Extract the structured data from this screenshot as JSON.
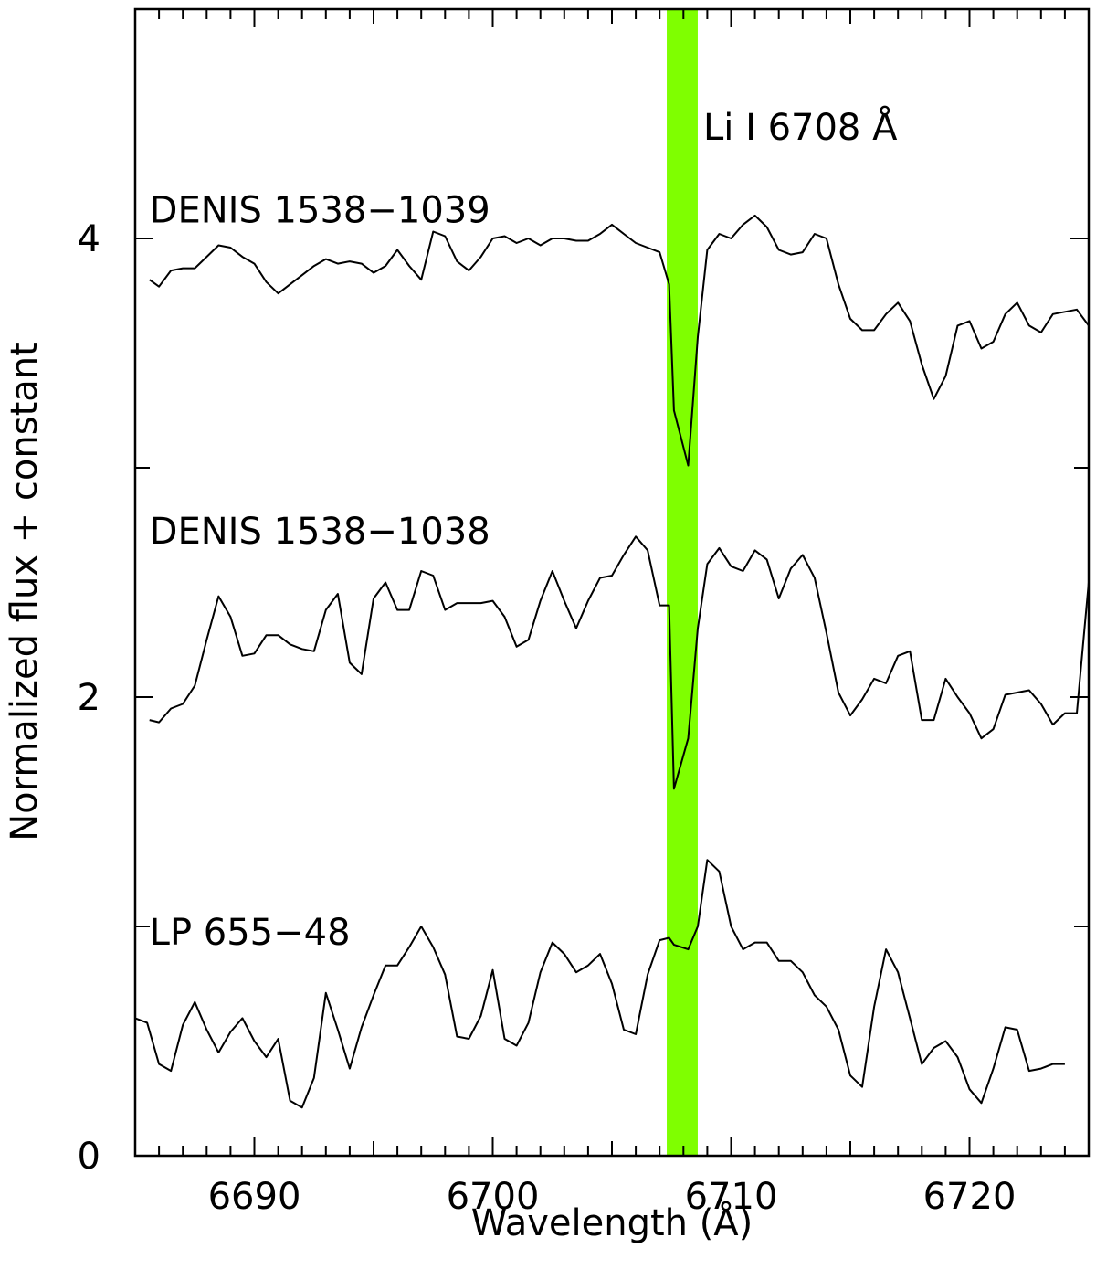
{
  "chart_data": {
    "type": "line",
    "title": "",
    "xlabel": "Wavelength (Å)",
    "ylabel": "Normalized flux + constant",
    "xlim": [
      6685,
      6725
    ],
    "ylim": [
      0,
      5
    ],
    "x_ticks": [
      6690,
      6700,
      6710,
      6720
    ],
    "y_ticks": [
      0,
      2,
      4
    ],
    "x_minor_step": 1,
    "y_minor_step": 1,
    "line_color": "#000000",
    "highlight": {
      "label": "Li I 6708 Å",
      "x_range": [
        6707.3,
        6708.6
      ],
      "color": "#7fff00"
    },
    "series": [
      {
        "name": "DENIS 1538−1039",
        "label_at": [
          6685.6,
          4.07
        ],
        "x": [
          6685.6,
          6686.0,
          6686.5,
          6687.0,
          6687.5,
          6688.0,
          6688.5,
          6689.0,
          6689.5,
          6690.0,
          6690.5,
          6691.0,
          6691.5,
          6692.0,
          6692.5,
          6693.0,
          6693.5,
          6694.0,
          6694.5,
          6695.0,
          6695.5,
          6696.0,
          6696.5,
          6697.0,
          6697.5,
          6698.0,
          6698.5,
          6699.0,
          6699.5,
          6700.0,
          6700.5,
          6701.0,
          6701.5,
          6702.0,
          6702.5,
          6703.0,
          6703.5,
          6704.0,
          6704.5,
          6705.0,
          6705.5,
          6706.0,
          6706.5,
          6707.0,
          6707.4,
          6707.6,
          6708.2,
          6708.6,
          6709.0,
          6709.5,
          6710.0,
          6710.5,
          6711.0,
          6711.5,
          6712.0,
          6712.5,
          6713.0,
          6713.5,
          6714.0,
          6714.5,
          6715.0,
          6715.5,
          6716.0,
          6716.5,
          6717.0,
          6717.5,
          6718.0,
          6718.5,
          6719.0,
          6719.5,
          6720.0,
          6720.5,
          6721.0,
          6721.5,
          6722.0,
          6722.5,
          6723.0,
          6723.5,
          6724.0,
          6724.5,
          6725.0
        ],
        "y": [
          3.82,
          3.79,
          3.86,
          3.87,
          3.87,
          3.92,
          3.97,
          3.96,
          3.92,
          3.89,
          3.81,
          3.76,
          3.8,
          3.84,
          3.88,
          3.91,
          3.89,
          3.9,
          3.89,
          3.85,
          3.88,
          3.95,
          3.88,
          3.82,
          4.03,
          4.01,
          3.9,
          3.86,
          3.92,
          4.0,
          4.01,
          3.98,
          4.0,
          3.97,
          4.0,
          4.0,
          3.99,
          3.99,
          4.02,
          4.06,
          4.02,
          3.98,
          3.96,
          3.94,
          3.8,
          3.25,
          3.01,
          3.57,
          3.95,
          4.02,
          4.0,
          4.06,
          4.1,
          4.05,
          3.95,
          3.93,
          3.94,
          4.02,
          4.0,
          3.8,
          3.65,
          3.6,
          3.6,
          3.67,
          3.72,
          3.64,
          3.45,
          3.3,
          3.4,
          3.62,
          3.64,
          3.52,
          3.55,
          3.67,
          3.72,
          3.62,
          3.59,
          3.67,
          3.68,
          3.69,
          3.62
        ]
      },
      {
        "name": "DENIS 1538−1038",
        "label_at": [
          6685.6,
          2.67
        ],
        "x": [
          6685.6,
          6686.0,
          6686.5,
          6687.0,
          6687.5,
          6688.0,
          6688.5,
          6689.0,
          6689.5,
          6690.0,
          6690.5,
          6691.0,
          6691.5,
          6692.0,
          6692.5,
          6693.0,
          6693.5,
          6694.0,
          6694.5,
          6695.0,
          6695.5,
          6696.0,
          6696.5,
          6697.0,
          6697.5,
          6698.0,
          6698.5,
          6699.0,
          6699.5,
          6700.0,
          6700.5,
          6701.0,
          6701.5,
          6702.0,
          6702.5,
          6703.0,
          6703.5,
          6704.0,
          6704.5,
          6705.0,
          6705.5,
          6706.0,
          6706.5,
          6707.0,
          6707.4,
          6707.6,
          6708.2,
          6708.6,
          6709.0,
          6709.5,
          6710.0,
          6710.5,
          6711.0,
          6711.5,
          6712.0,
          6712.5,
          6713.0,
          6713.5,
          6714.0,
          6714.5,
          6715.0,
          6715.5,
          6716.0,
          6716.5,
          6717.0,
          6717.5,
          6718.0,
          6718.5,
          6719.0,
          6719.5,
          6720.0,
          6720.5,
          6721.0,
          6721.5,
          6722.0,
          6722.5,
          6723.0,
          6723.5,
          6724.0,
          6724.5,
          6725.0
        ],
        "y": [
          1.9,
          1.89,
          1.95,
          1.97,
          2.05,
          2.25,
          2.44,
          2.35,
          2.18,
          2.19,
          2.27,
          2.27,
          2.23,
          2.21,
          2.2,
          2.38,
          2.45,
          2.15,
          2.1,
          2.43,
          2.5,
          2.38,
          2.38,
          2.55,
          2.53,
          2.38,
          2.41,
          2.41,
          2.41,
          2.42,
          2.35,
          2.22,
          2.25,
          2.42,
          2.55,
          2.42,
          2.3,
          2.42,
          2.52,
          2.53,
          2.62,
          2.7,
          2.64,
          2.4,
          2.4,
          1.6,
          1.82,
          2.3,
          2.58,
          2.65,
          2.57,
          2.55,
          2.64,
          2.6,
          2.43,
          2.56,
          2.62,
          2.52,
          2.28,
          2.02,
          1.92,
          1.99,
          2.08,
          2.06,
          2.18,
          2.2,
          1.9,
          1.9,
          2.08,
          2.0,
          1.93,
          1.82,
          1.86,
          2.01,
          2.02,
          2.03,
          1.97,
          1.88,
          1.93,
          1.93,
          2.5
        ]
      },
      {
        "name": "LP 655−48",
        "label_at": [
          6685.6,
          0.92
        ],
        "x": [
          6685.0,
          6685.5,
          6686.0,
          6686.5,
          6687.0,
          6687.5,
          6688.0,
          6688.5,
          6689.0,
          6689.5,
          6690.0,
          6690.5,
          6691.0,
          6691.5,
          6692.0,
          6692.5,
          6693.0,
          6693.5,
          6694.0,
          6694.5,
          6695.0,
          6695.5,
          6696.0,
          6696.5,
          6697.0,
          6697.5,
          6698.0,
          6698.5,
          6699.0,
          6699.5,
          6700.0,
          6700.5,
          6701.0,
          6701.5,
          6702.0,
          6702.5,
          6703.0,
          6703.5,
          6704.0,
          6704.5,
          6705.0,
          6705.5,
          6706.0,
          6706.5,
          6707.0,
          6707.4,
          6707.6,
          6708.2,
          6708.6,
          6709.0,
          6709.5,
          6710.0,
          6710.5,
          6711.0,
          6711.5,
          6712.0,
          6712.5,
          6713.0,
          6713.5,
          6714.0,
          6714.5,
          6715.0,
          6715.5,
          6716.0,
          6716.5,
          6717.0,
          6717.5,
          6718.0,
          6718.5,
          6719.0,
          6719.5,
          6720.0,
          6720.5,
          6721.0,
          6721.5,
          6722.0,
          6722.5,
          6723.0,
          6723.5,
          6724.0
        ],
        "y": [
          0.6,
          0.58,
          0.4,
          0.37,
          0.57,
          0.67,
          0.55,
          0.45,
          0.54,
          0.6,
          0.5,
          0.43,
          0.51,
          0.24,
          0.21,
          0.34,
          0.71,
          0.55,
          0.38,
          0.56,
          0.7,
          0.83,
          0.83,
          0.91,
          1.0,
          0.91,
          0.79,
          0.52,
          0.51,
          0.61,
          0.81,
          0.51,
          0.48,
          0.58,
          0.8,
          0.93,
          0.88,
          0.8,
          0.83,
          0.88,
          0.75,
          0.55,
          0.53,
          0.79,
          0.94,
          0.95,
          0.92,
          0.9,
          1.0,
          1.29,
          1.24,
          1.0,
          0.9,
          0.93,
          0.93,
          0.85,
          0.85,
          0.8,
          0.7,
          0.65,
          0.55,
          0.35,
          0.3,
          0.65,
          0.9,
          0.8,
          0.6,
          0.4,
          0.47,
          0.5,
          0.43,
          0.29,
          0.23,
          0.38,
          0.56,
          0.55,
          0.37,
          0.38,
          0.4,
          0.4
        ]
      }
    ]
  }
}
